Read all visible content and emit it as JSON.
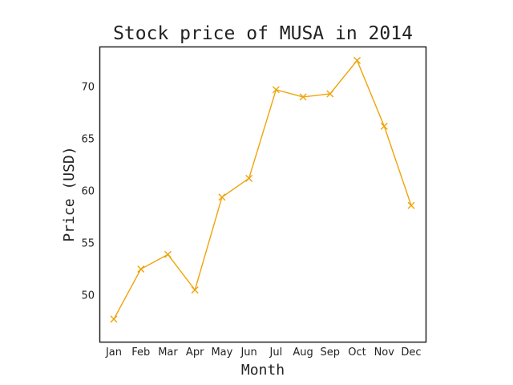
{
  "chart_data": {
    "type": "line",
    "title": "Stock price of MUSA in 2014",
    "xlabel": "Month",
    "ylabel": "Price (USD)",
    "categories": [
      "Jan",
      "Feb",
      "Mar",
      "Apr",
      "May",
      "Jun",
      "Jul",
      "Aug",
      "Sep",
      "Oct",
      "Nov",
      "Dec"
    ],
    "series": [
      {
        "values": [
          47.7,
          52.5,
          53.9,
          50.5,
          59.4,
          61.2,
          69.7,
          69.0,
          69.3,
          72.5,
          66.2,
          58.6
        ],
        "color": "#f0a30a",
        "marker": "x"
      }
    ],
    "ylim": [
      45.5,
      73.8
    ],
    "yticks": [
      50,
      55,
      60,
      65,
      70
    ],
    "grid": false,
    "legend": false
  }
}
